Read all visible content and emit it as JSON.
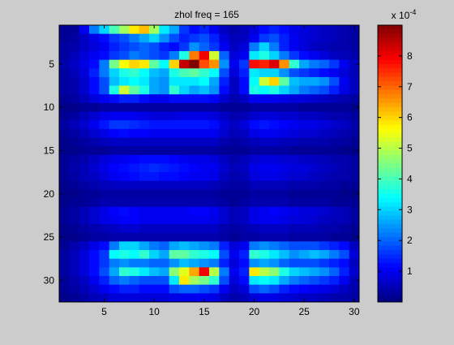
{
  "chart_data": {
    "type": "heatmap",
    "title": "zhol freq = 165",
    "xlim": [
      0.5,
      30.5
    ],
    "ylim": [
      0.5,
      32.5
    ],
    "y_direction": "reverse",
    "x_ticks": [
      5,
      10,
      15,
      20,
      25,
      30
    ],
    "y_ticks": [
      5,
      10,
      15,
      20,
      25,
      30
    ],
    "colorbar": {
      "colormap": "jet",
      "range": [
        0,
        0.0009
      ],
      "ticks": [
        1,
        2,
        3,
        4,
        5,
        6,
        7,
        8
      ],
      "exponent_label": "x 10",
      "exponent_power": "-4"
    },
    "values_units": "x 10^-4",
    "values": [
      [
        0.2,
        0.2,
        1.0,
        2.2,
        3.0,
        4.0,
        4.8,
        5.8,
        6.2,
        4.8,
        3.2,
        2.6,
        1.6,
        1.2,
        1.4,
        1.0,
        0.6,
        0.4,
        0.5,
        0.8,
        1.2,
        1.4,
        1.2,
        0.9,
        0.8,
        0.7,
        0.6,
        0.5,
        0.4,
        0.3
      ],
      [
        0.2,
        0.3,
        0.6,
        0.9,
        1.2,
        1.6,
        1.8,
        2.2,
        2.6,
        3.0,
        2.4,
        1.8,
        1.4,
        1.6,
        1.8,
        1.4,
        0.8,
        0.5,
        0.6,
        1.0,
        1.6,
        1.8,
        1.4,
        1.0,
        0.8,
        0.7,
        0.6,
        0.5,
        0.4,
        0.3
      ],
      [
        0.3,
        0.4,
        0.6,
        0.8,
        1.0,
        1.4,
        1.6,
        1.8,
        2.0,
        1.8,
        1.4,
        1.2,
        1.6,
        2.4,
        2.0,
        1.6,
        1.0,
        0.6,
        0.8,
        2.2,
        3.0,
        2.2,
        1.4,
        1.0,
        0.8,
        0.6,
        0.5,
        0.4,
        0.4,
        0.3
      ],
      [
        0.3,
        0.5,
        0.8,
        1.0,
        1.2,
        1.6,
        1.8,
        2.2,
        2.0,
        1.8,
        1.6,
        2.2,
        3.6,
        6.8,
        8.0,
        5.2,
        2.0,
        0.8,
        1.0,
        3.2,
        3.6,
        3.0,
        2.2,
        1.6,
        1.2,
        1.0,
        0.8,
        0.6,
        0.5,
        0.4
      ],
      [
        0.4,
        0.6,
        0.9,
        1.2,
        2.2,
        4.4,
        5.6,
        6.0,
        5.8,
        4.2,
        3.4,
        6.0,
        8.4,
        9.0,
        7.2,
        6.6,
        2.4,
        1.0,
        1.6,
        7.8,
        7.6,
        8.2,
        6.6,
        3.8,
        2.6,
        2.2,
        2.0,
        1.6,
        1.0,
        0.6
      ],
      [
        0.3,
        0.5,
        0.8,
        1.4,
        2.2,
        3.0,
        3.6,
        3.8,
        3.4,
        2.8,
        2.6,
        3.6,
        4.0,
        4.2,
        3.8,
        3.4,
        1.8,
        0.8,
        1.4,
        3.2,
        3.0,
        3.0,
        2.4,
        1.8,
        1.6,
        1.4,
        1.2,
        1.0,
        0.8,
        0.5
      ],
      [
        0.3,
        0.4,
        0.7,
        1.2,
        1.8,
        2.8,
        3.2,
        3.4,
        3.2,
        2.6,
        2.4,
        3.2,
        3.2,
        3.2,
        3.4,
        2.6,
        1.4,
        0.6,
        1.2,
        3.4,
        5.2,
        6.0,
        4.2,
        2.8,
        2.6,
        2.6,
        2.4,
        1.8,
        1.0,
        0.6
      ],
      [
        0.3,
        0.4,
        0.7,
        1.2,
        1.8,
        3.6,
        5.2,
        4.2,
        3.6,
        2.6,
        2.4,
        3.8,
        3.0,
        2.6,
        2.8,
        2.4,
        1.2,
        0.6,
        1.2,
        3.6,
        3.4,
        3.6,
        3.0,
        2.6,
        2.2,
        2.0,
        1.8,
        1.4,
        0.9,
        0.6
      ],
      [
        0.2,
        0.3,
        0.5,
        0.8,
        1.0,
        1.2,
        1.4,
        1.4,
        1.2,
        1.0,
        1.0,
        1.2,
        1.2,
        1.2,
        1.2,
        1.1,
        0.7,
        0.4,
        0.6,
        1.0,
        1.0,
        1.0,
        0.9,
        0.8,
        0.8,
        0.7,
        0.6,
        0.5,
        0.4,
        0.3
      ],
      [
        0.1,
        0.1,
        0.2,
        0.2,
        0.3,
        0.3,
        0.3,
        0.3,
        0.3,
        0.3,
        0.3,
        0.3,
        0.3,
        0.3,
        0.3,
        0.3,
        0.2,
        0.2,
        0.2,
        0.3,
        0.3,
        0.3,
        0.3,
        0.3,
        0.2,
        0.2,
        0.2,
        0.2,
        0.2,
        0.1
      ],
      [
        0.2,
        0.3,
        0.5,
        0.7,
        0.9,
        1.0,
        1.0,
        1.0,
        0.9,
        0.8,
        0.8,
        0.8,
        0.9,
        0.9,
        0.9,
        0.8,
        0.6,
        0.4,
        0.5,
        0.7,
        0.8,
        0.8,
        0.7,
        0.7,
        0.6,
        0.6,
        0.5,
        0.4,
        0.4,
        0.3
      ],
      [
        0.3,
        0.5,
        0.7,
        1.0,
        1.3,
        1.6,
        1.6,
        1.5,
        1.4,
        1.3,
        1.3,
        1.3,
        1.3,
        1.3,
        1.3,
        1.2,
        0.8,
        0.6,
        0.8,
        1.2,
        1.3,
        1.2,
        1.1,
        1.0,
        0.9,
        0.9,
        0.8,
        0.7,
        0.6,
        0.4
      ],
      [
        0.2,
        0.3,
        0.5,
        0.7,
        0.9,
        1.1,
        1.2,
        1.1,
        1.1,
        1.0,
        1.0,
        1.0,
        1.0,
        1.0,
        1.0,
        1.0,
        0.7,
        0.5,
        0.6,
        0.9,
        1.0,
        1.0,
        0.9,
        0.8,
        0.7,
        0.7,
        0.6,
        0.5,
        0.4,
        0.3
      ],
      [
        0.1,
        0.2,
        0.3,
        0.4,
        0.5,
        0.6,
        0.6,
        0.6,
        0.6,
        0.6,
        0.6,
        0.6,
        0.6,
        0.6,
        0.6,
        0.6,
        0.4,
        0.3,
        0.4,
        0.5,
        0.6,
        0.6,
        0.5,
        0.5,
        0.4,
        0.4,
        0.4,
        0.3,
        0.3,
        0.2
      ],
      [
        0.1,
        0.1,
        0.2,
        0.2,
        0.2,
        0.3,
        0.3,
        0.3,
        0.3,
        0.3,
        0.3,
        0.3,
        0.3,
        0.3,
        0.3,
        0.3,
        0.2,
        0.2,
        0.2,
        0.3,
        0.3,
        0.3,
        0.3,
        0.2,
        0.2,
        0.2,
        0.2,
        0.2,
        0.1,
        0.1
      ],
      [
        0.2,
        0.3,
        0.4,
        0.6,
        0.8,
        0.9,
        1.0,
        1.1,
        1.2,
        1.2,
        1.2,
        1.1,
        1.0,
        0.9,
        0.9,
        0.8,
        0.6,
        0.4,
        0.5,
        0.7,
        0.8,
        0.8,
        0.7,
        0.7,
        0.6,
        0.6,
        0.5,
        0.4,
        0.4,
        0.3
      ],
      [
        0.2,
        0.4,
        0.5,
        0.7,
        0.9,
        1.1,
        1.2,
        1.3,
        1.4,
        1.5,
        1.4,
        1.3,
        1.2,
        1.1,
        1.0,
        1.0,
        0.7,
        0.5,
        0.6,
        0.9,
        1.0,
        1.0,
        0.9,
        0.8,
        0.8,
        0.7,
        0.6,
        0.5,
        0.4,
        0.3
      ],
      [
        0.2,
        0.3,
        0.5,
        0.6,
        0.8,
        1.0,
        1.1,
        1.2,
        1.3,
        1.3,
        1.2,
        1.2,
        1.1,
        1.0,
        1.0,
        0.9,
        0.6,
        0.4,
        0.5,
        0.8,
        0.9,
        0.9,
        0.8,
        0.7,
        0.7,
        0.6,
        0.5,
        0.4,
        0.4,
        0.3
      ],
      [
        0.1,
        0.2,
        0.3,
        0.4,
        0.5,
        0.6,
        0.6,
        0.6,
        0.6,
        0.6,
        0.6,
        0.6,
        0.6,
        0.6,
        0.6,
        0.5,
        0.4,
        0.3,
        0.3,
        0.5,
        0.5,
        0.5,
        0.5,
        0.4,
        0.4,
        0.4,
        0.3,
        0.3,
        0.2,
        0.2
      ],
      [
        0.1,
        0.1,
        0.2,
        0.2,
        0.3,
        0.3,
        0.3,
        0.3,
        0.3,
        0.3,
        0.3,
        0.3,
        0.3,
        0.3,
        0.3,
        0.3,
        0.2,
        0.2,
        0.2,
        0.3,
        0.3,
        0.3,
        0.3,
        0.2,
        0.2,
        0.2,
        0.2,
        0.2,
        0.1,
        0.1
      ],
      [
        0.1,
        0.2,
        0.2,
        0.3,
        0.4,
        0.4,
        0.4,
        0.4,
        0.4,
        0.4,
        0.4,
        0.4,
        0.4,
        0.4,
        0.4,
        0.4,
        0.3,
        0.2,
        0.3,
        0.4,
        0.4,
        0.4,
        0.4,
        0.3,
        0.3,
        0.3,
        0.3,
        0.2,
        0.2,
        0.2
      ],
      [
        0.2,
        0.3,
        0.5,
        0.7,
        0.9,
        1.1,
        1.2,
        1.1,
        1.0,
        1.0,
        1.0,
        1.0,
        1.0,
        1.1,
        1.1,
        1.0,
        0.7,
        0.5,
        0.6,
        0.9,
        1.0,
        1.1,
        1.0,
        0.9,
        0.8,
        0.8,
        0.7,
        0.6,
        0.5,
        0.3
      ],
      [
        0.2,
        0.3,
        0.5,
        0.7,
        0.9,
        1.0,
        1.1,
        1.1,
        1.0,
        1.0,
        1.0,
        1.0,
        1.0,
        1.0,
        1.0,
        0.9,
        0.7,
        0.5,
        0.6,
        0.9,
        1.0,
        1.0,
        0.9,
        0.8,
        0.8,
        0.7,
        0.6,
        0.5,
        0.5,
        0.3
      ],
      [
        0.1,
        0.2,
        0.3,
        0.4,
        0.5,
        0.6,
        0.7,
        0.7,
        0.6,
        0.6,
        0.6,
        0.6,
        0.6,
        0.6,
        0.6,
        0.6,
        0.4,
        0.3,
        0.4,
        0.5,
        0.6,
        0.6,
        0.6,
        0.5,
        0.5,
        0.5,
        0.4,
        0.4,
        0.3,
        0.2
      ],
      [
        0.1,
        0.1,
        0.2,
        0.3,
        0.3,
        0.4,
        0.4,
        0.4,
        0.4,
        0.4,
        0.4,
        0.4,
        0.4,
        0.4,
        0.4,
        0.4,
        0.3,
        0.2,
        0.3,
        0.3,
        0.4,
        0.4,
        0.4,
        0.3,
        0.3,
        0.3,
        0.3,
        0.2,
        0.2,
        0.1
      ],
      [
        0.2,
        0.4,
        0.6,
        0.9,
        1.2,
        2.2,
        3.0,
        3.0,
        2.6,
        2.2,
        2.0,
        2.6,
        2.8,
        2.6,
        2.4,
        2.2,
        1.4,
        0.8,
        1.0,
        2.2,
        2.4,
        2.2,
        2.0,
        1.8,
        1.8,
        1.8,
        1.6,
        1.4,
        1.2,
        0.6
      ],
      [
        0.3,
        0.5,
        0.8,
        1.2,
        1.6,
        3.4,
        3.6,
        3.4,
        3.8,
        3.0,
        2.6,
        4.2,
        4.2,
        3.8,
        3.6,
        3.4,
        1.8,
        1.0,
        1.4,
        3.8,
        3.6,
        3.2,
        2.8,
        2.4,
        2.6,
        2.8,
        2.6,
        2.2,
        1.8,
        0.8
      ],
      [
        0.3,
        0.5,
        0.8,
        1.2,
        1.6,
        2.2,
        2.4,
        2.2,
        2.2,
        2.0,
        2.0,
        2.4,
        2.8,
        2.6,
        2.4,
        2.2,
        1.4,
        0.8,
        1.2,
        2.4,
        2.6,
        2.4,
        2.0,
        1.8,
        1.8,
        1.8,
        1.6,
        1.4,
        1.2,
        0.6
      ],
      [
        0.3,
        0.5,
        0.8,
        1.2,
        1.8,
        2.6,
        3.8,
        3.6,
        3.2,
        2.8,
        2.6,
        4.6,
        5.4,
        6.4,
        8.0,
        5.0,
        2.2,
        1.0,
        1.4,
        5.8,
        5.0,
        4.6,
        3.6,
        3.0,
        2.8,
        2.6,
        2.4,
        2.0,
        1.4,
        0.7
      ],
      [
        0.2,
        0.4,
        0.6,
        1.0,
        1.4,
        2.0,
        2.2,
        2.0,
        1.8,
        1.8,
        1.8,
        3.2,
        5.8,
        4.8,
        4.4,
        3.8,
        1.8,
        0.8,
        1.2,
        3.2,
        3.4,
        3.2,
        2.6,
        2.2,
        2.0,
        1.8,
        1.6,
        1.4,
        1.0,
        0.5
      ],
      [
        0.2,
        0.3,
        0.5,
        0.7,
        1.0,
        1.2,
        1.4,
        1.4,
        1.2,
        1.2,
        1.2,
        1.8,
        2.0,
        2.0,
        1.8,
        1.6,
        1.0,
        0.6,
        0.8,
        1.8,
        2.0,
        1.8,
        1.4,
        1.2,
        1.1,
        1.0,
        0.9,
        0.8,
        0.6,
        0.4
      ],
      [
        0.1,
        0.2,
        0.3,
        0.5,
        0.6,
        0.8,
        0.8,
        0.8,
        0.8,
        0.8,
        0.8,
        0.9,
        1.0,
        1.0,
        1.0,
        0.9,
        0.6,
        0.4,
        0.5,
        0.8,
        0.9,
        0.9,
        0.8,
        0.7,
        0.6,
        0.6,
        0.5,
        0.4,
        0.4,
        0.3
      ]
    ]
  }
}
